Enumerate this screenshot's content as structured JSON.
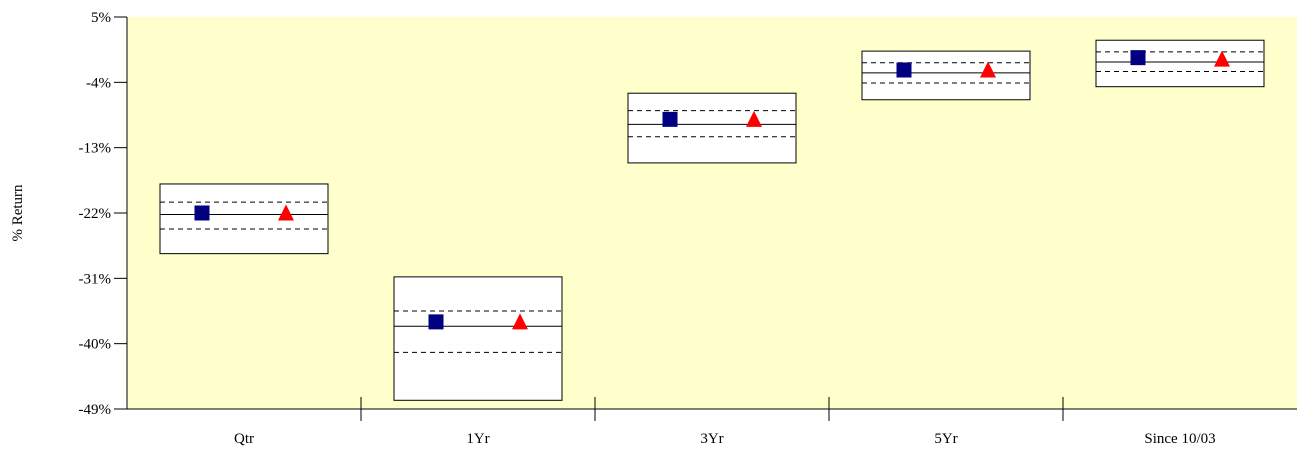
{
  "chart_data": {
    "type": "box",
    "title": "",
    "xlabel": "",
    "ylabel": "% Return",
    "ylim": [
      -49,
      5
    ],
    "yticks": [
      "5%",
      "-4%",
      "-13%",
      "-22%",
      "-31%",
      "-40%",
      "-49%"
    ],
    "ytick_values": [
      5,
      -4,
      -13,
      -22,
      -31,
      -40,
      -49
    ],
    "categories": [
      "Qtr",
      "1Yr",
      "3Yr",
      "5Yr",
      "Since 10/03"
    ],
    "boxes": [
      {
        "top": -18.0,
        "upper_quartile": -20.5,
        "median": -22.2,
        "lower_quartile": -24.2,
        "bottom": -27.6
      },
      {
        "top": -30.8,
        "upper_quartile": -35.5,
        "median": -37.6,
        "lower_quartile": -41.2,
        "bottom": -47.8
      },
      {
        "top": -5.5,
        "upper_quartile": -7.9,
        "median": -9.8,
        "lower_quartile": -11.5,
        "bottom": -15.1
      },
      {
        "top": 0.3,
        "upper_quartile": -1.3,
        "median": -2.7,
        "lower_quartile": -4.1,
        "bottom": -6.4
      },
      {
        "top": 1.8,
        "upper_quartile": 0.2,
        "median": -1.2,
        "lower_quartile": -2.5,
        "bottom": -4.6
      }
    ],
    "series": [
      {
        "marker": "square",
        "color": "#000080",
        "values": [
          -22.0,
          -37.0,
          -9.1,
          -2.3,
          -0.6
        ]
      },
      {
        "marker": "triangle",
        "color": "#ff0000",
        "values": [
          -22.0,
          -37.0,
          -9.1,
          -2.3,
          -0.8
        ]
      }
    ],
    "colors": {
      "plot_background": "#ffffcc",
      "box_fill": "#ffffff",
      "lines": "#000000"
    },
    "grid": false,
    "legend": "none"
  }
}
